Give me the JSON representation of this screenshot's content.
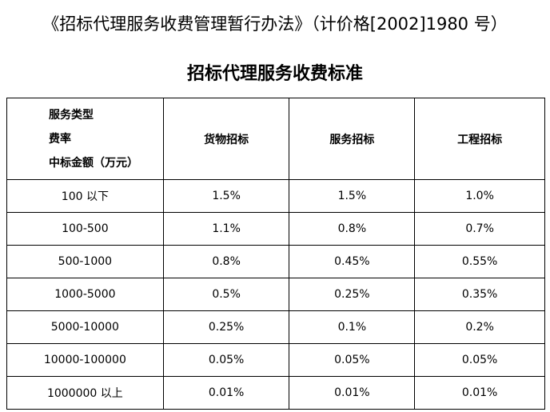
{
  "header": {
    "title": "《招标代理服务收费管理暂行办法》（计价格[2002]1980 号）",
    "subtitle": "招标代理服务收费标准"
  },
  "table": {
    "corner": [
      "服务类型",
      "费率",
      "中标金额（万元）"
    ],
    "columns": [
      "货物招标",
      "服务招标",
      "工程招标"
    ],
    "rows": [
      [
        "100 以下",
        "1.5%",
        "1.5%",
        "1.0%"
      ],
      [
        "100-500",
        "1.1%",
        "0.8%",
        "0.7%"
      ],
      [
        "500-1000",
        "0.8%",
        "0.45%",
        "0.55%"
      ],
      [
        "1000-5000",
        "0.5%",
        "0.25%",
        "0.35%"
      ],
      [
        "5000-10000",
        "0.25%",
        "0.1%",
        "0.2%"
      ],
      [
        "10000-100000",
        "0.05%",
        "0.05%",
        "0.05%"
      ],
      [
        "1000000 以上",
        "0.01%",
        "0.01%",
        "0.01%"
      ]
    ]
  }
}
